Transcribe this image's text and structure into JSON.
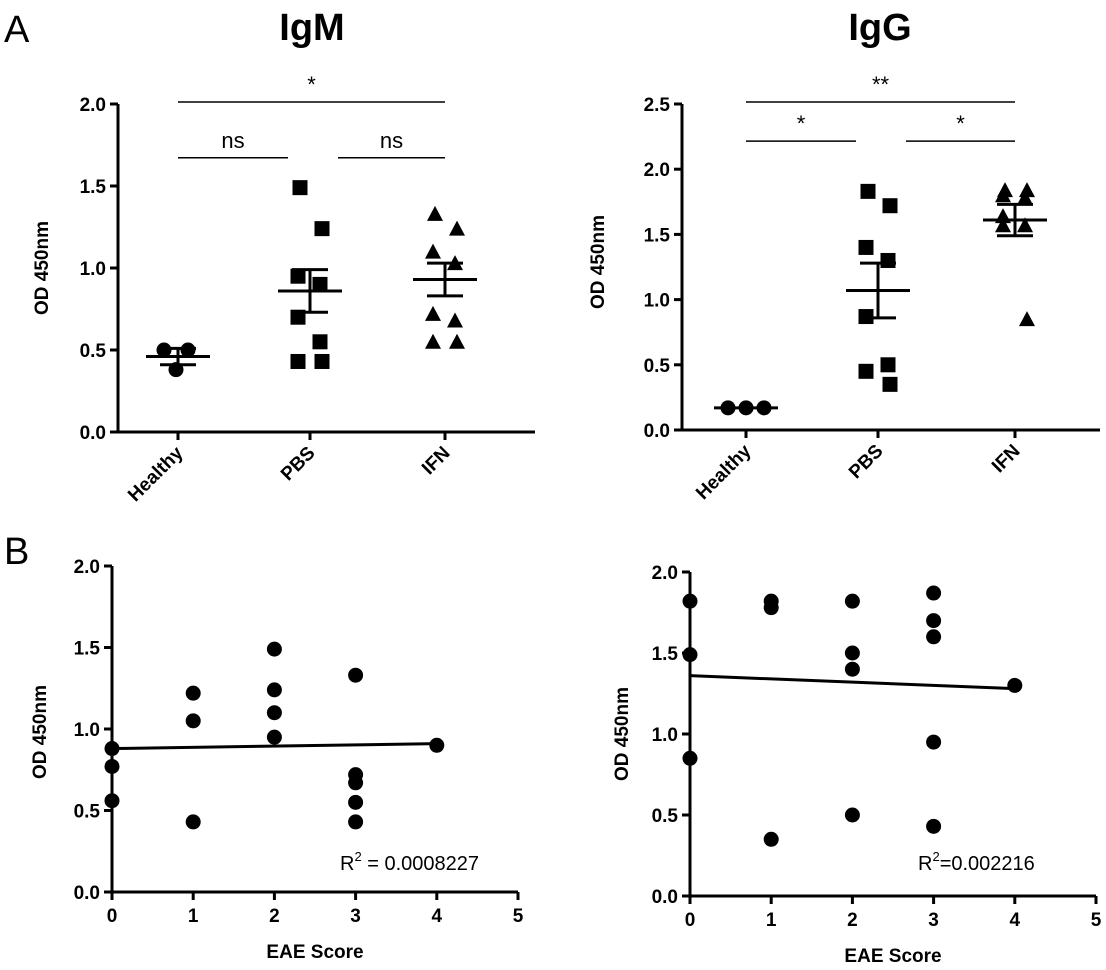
{
  "panels": {
    "a": "A",
    "b": "B"
  },
  "chart_data": [
    {
      "type": "scatter",
      "title": "IgM",
      "xlabel": "",
      "ylabel": "OD 450nm",
      "categories": [
        "Healthy",
        "PBS",
        "IFN"
      ],
      "ylim": [
        0,
        2.0
      ],
      "yticks": [
        "0.0",
        "0.5",
        "1.0",
        "1.5",
        "2.0"
      ],
      "marker": "circle-square-triangle",
      "groups": [
        {
          "name": "Healthy",
          "marker": "circle",
          "values": [
            0.5,
            0.5,
            0.38
          ],
          "mean": 0.46,
          "sem": 0.05
        },
        {
          "name": "PBS",
          "marker": "square",
          "values": [
            1.49,
            1.24,
            0.95,
            0.9,
            0.7,
            0.55,
            0.43,
            0.43
          ],
          "mean": 0.86,
          "sem": 0.13
        },
        {
          "name": "IFN",
          "marker": "triangle",
          "values": [
            1.33,
            1.24,
            1.1,
            1.03,
            0.72,
            0.68,
            0.55,
            0.55
          ],
          "mean": 0.93,
          "sem": 0.1
        }
      ],
      "significance": [
        {
          "from": "Healthy",
          "to": "IFN",
          "label": "*",
          "y": 2.0
        },
        {
          "from": "Healthy",
          "to": "PBS",
          "label": "ns",
          "y": 1.66
        },
        {
          "from": "PBS",
          "to": "IFN",
          "label": "ns",
          "y": 1.66
        }
      ]
    },
    {
      "type": "scatter",
      "title": "IgG",
      "xlabel": "",
      "ylabel": "OD 450nm",
      "categories": [
        "Healthy",
        "PBS",
        "IFN"
      ],
      "ylim": [
        0,
        2.5
      ],
      "yticks": [
        "0.0",
        "0.5",
        "1.0",
        "1.5",
        "2.0",
        "2.5"
      ],
      "groups": [
        {
          "name": "Healthy",
          "marker": "circle",
          "values": [
            0.17,
            0.17,
            0.17
          ],
          "mean": 0.17,
          "sem": 0.0
        },
        {
          "name": "PBS",
          "marker": "square",
          "values": [
            1.83,
            1.72,
            1.4,
            1.3,
            0.87,
            0.5,
            0.45,
            0.35
          ],
          "mean": 1.07,
          "sem": 0.21
        },
        {
          "name": "IFN",
          "marker": "triangle",
          "values": [
            1.84,
            1.84,
            1.8,
            1.78,
            1.64,
            1.57,
            1.57,
            0.85
          ],
          "mean": 1.61,
          "sem": 0.12
        }
      ],
      "significance": [
        {
          "from": "Healthy",
          "to": "IFN",
          "label": "**",
          "y": 2.5
        },
        {
          "from": "Healthy",
          "to": "PBS",
          "label": "*",
          "y": 2.2
        },
        {
          "from": "PBS",
          "to": "IFN",
          "label": "*",
          "y": 2.2
        }
      ]
    },
    {
      "type": "scatter",
      "title": "",
      "xlabel": "EAE Score",
      "ylabel": "OD 450nm",
      "xlim": [
        0,
        5
      ],
      "ylim": [
        0,
        2.0
      ],
      "xticks": [
        "0",
        "1",
        "2",
        "3",
        "4",
        "5"
      ],
      "yticks": [
        "0.0",
        "0.5",
        "1.0",
        "1.5",
        "2.0"
      ],
      "points": [
        {
          "x": 0,
          "y": 0.88
        },
        {
          "x": 0,
          "y": 0.77
        },
        {
          "x": 0,
          "y": 0.56
        },
        {
          "x": 1,
          "y": 1.22
        },
        {
          "x": 1,
          "y": 1.05
        },
        {
          "x": 1,
          "y": 0.43
        },
        {
          "x": 2,
          "y": 1.49
        },
        {
          "x": 2,
          "y": 1.24
        },
        {
          "x": 2,
          "y": 1.1
        },
        {
          "x": 2,
          "y": 0.95
        },
        {
          "x": 3,
          "y": 1.33
        },
        {
          "x": 3,
          "y": 0.72
        },
        {
          "x": 3,
          "y": 0.67
        },
        {
          "x": 3,
          "y": 0.55
        },
        {
          "x": 3,
          "y": 0.43
        },
        {
          "x": 4,
          "y": 0.9
        }
      ],
      "fit": {
        "x": [
          0,
          4
        ],
        "y": [
          0.88,
          0.91
        ]
      },
      "r2_text": "R",
      "r2_sup": "2",
      "r2_value": " = 0.0008227"
    },
    {
      "type": "scatter",
      "title": "",
      "xlabel": "EAE Score",
      "ylabel": "OD 450nm",
      "xlim": [
        0,
        5
      ],
      "ylim": [
        0,
        2.0
      ],
      "xticks": [
        "0",
        "1",
        "2",
        "3",
        "4",
        "5"
      ],
      "yticks": [
        "0.0",
        "0.5",
        "1.0",
        "1.5",
        "2.0"
      ],
      "points": [
        {
          "x": 0,
          "y": 1.82
        },
        {
          "x": 0,
          "y": 1.49
        },
        {
          "x": 0,
          "y": 0.85
        },
        {
          "x": 1,
          "y": 1.82
        },
        {
          "x": 1,
          "y": 1.78
        },
        {
          "x": 1,
          "y": 0.35
        },
        {
          "x": 2,
          "y": 1.82
        },
        {
          "x": 2,
          "y": 1.5
        },
        {
          "x": 2,
          "y": 1.4
        },
        {
          "x": 2,
          "y": 0.5
        },
        {
          "x": 3,
          "y": 1.87
        },
        {
          "x": 3,
          "y": 1.7
        },
        {
          "x": 3,
          "y": 1.6
        },
        {
          "x": 3,
          "y": 0.95
        },
        {
          "x": 3,
          "y": 0.43
        },
        {
          "x": 4,
          "y": 1.3
        }
      ],
      "fit": {
        "x": [
          0,
          4
        ],
        "y": [
          1.36,
          1.28
        ]
      },
      "r2_text": "R",
      "r2_sup": "2",
      "r2_value": "=0.002216"
    }
  ]
}
